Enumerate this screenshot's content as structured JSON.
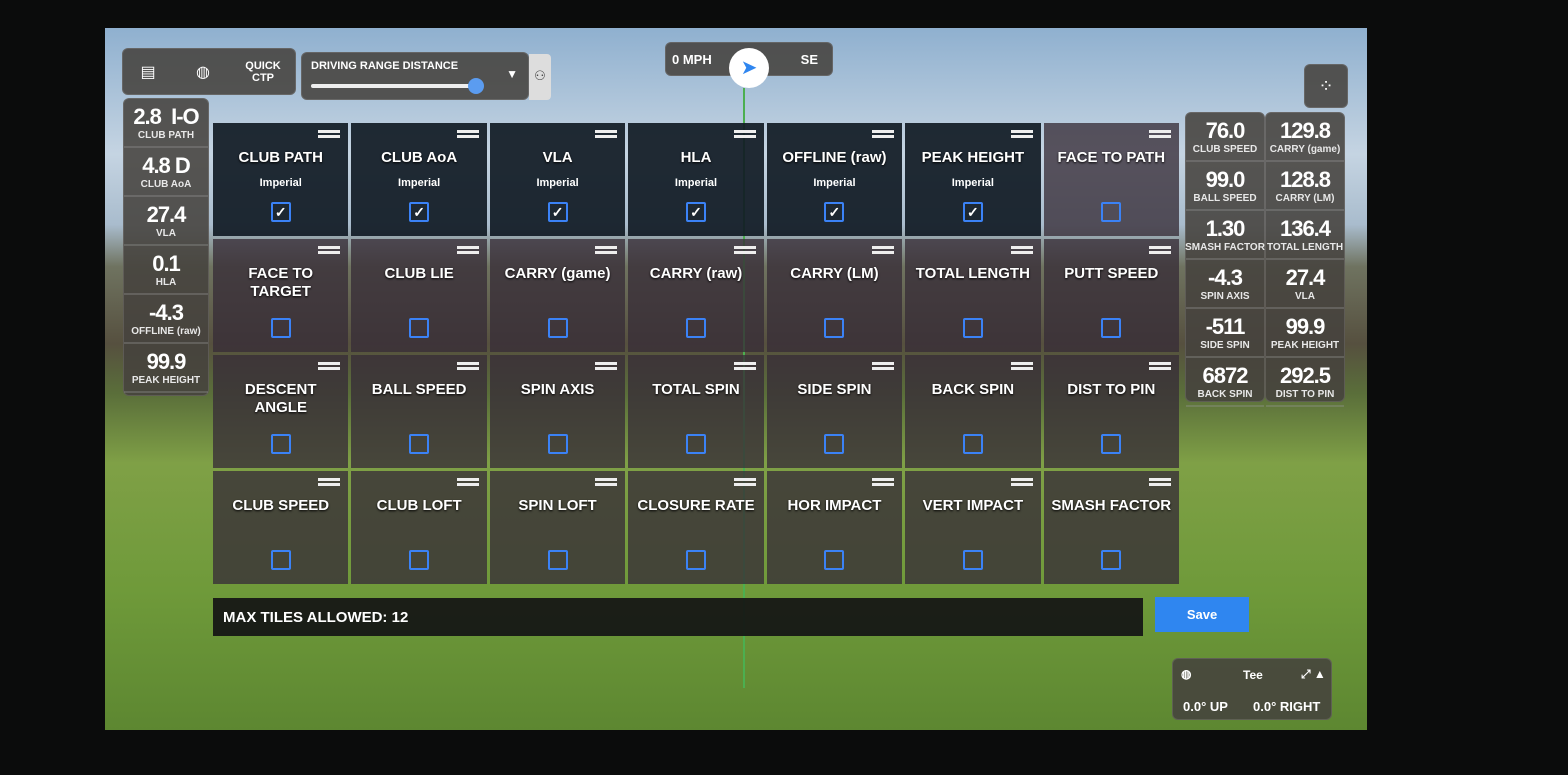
{
  "toolbar": {
    "clipboard_icon": "clipboard-icon",
    "ball_icon": "golf-ball-icon",
    "quick_ctp": "QUICK CTP",
    "range_label": "DRIVING RANGE DISTANCE",
    "range_value": 0.95,
    "players_icon": "users-icon"
  },
  "wind": {
    "speed": "0 MPH",
    "direction": "SE"
  },
  "left_stats": [
    {
      "v": "2.8  I-O",
      "l": "CLUB PATH"
    },
    {
      "v": "4.8 D",
      "l": "CLUB AoA"
    },
    {
      "v": "27.4",
      "l": "VLA"
    },
    {
      "v": "0.1",
      "l": "HLA"
    },
    {
      "v": "-4.3",
      "l": "OFFLINE (raw)"
    },
    {
      "v": "99.9",
      "l": "PEAK HEIGHT"
    }
  ],
  "right_stats_a": [
    {
      "v": "76.0",
      "l": "CLUB SPEED"
    },
    {
      "v": "99.0",
      "l": "BALL SPEED"
    },
    {
      "v": "1.30",
      "l": "SMASH FACTOR"
    },
    {
      "v": "-4.3",
      "l": "SPIN AXIS"
    },
    {
      "v": "-511",
      "l": "SIDE SPIN"
    },
    {
      "v": "6872",
      "l": "BACK SPIN"
    }
  ],
  "right_stats_b": [
    {
      "v": "129.8",
      "l": "CARRY (game)"
    },
    {
      "v": "128.8",
      "l": "CARRY (LM)"
    },
    {
      "v": "136.4",
      "l": "TOTAL LENGTH"
    },
    {
      "v": "27.4",
      "l": "VLA"
    },
    {
      "v": "99.9",
      "l": "PEAK HEIGHT"
    },
    {
      "v": "292.5",
      "l": "DIST TO PIN"
    }
  ],
  "tiles": [
    {
      "t": "CLUB PATH",
      "u": "Imperial",
      "on": true
    },
    {
      "t": "CLUB AoA",
      "u": "Imperial",
      "on": true
    },
    {
      "t": "VLA",
      "u": "Imperial",
      "on": true
    },
    {
      "t": "HLA",
      "u": "Imperial",
      "on": true
    },
    {
      "t": "OFFLINE (raw)",
      "u": "Imperial",
      "on": true
    },
    {
      "t": "PEAK HEIGHT",
      "u": "Imperial",
      "on": true
    },
    {
      "t": "FACE TO PATH",
      "on": false
    },
    {
      "t": "FACE TO TARGET",
      "on": false
    },
    {
      "t": "CLUB LIE",
      "on": false
    },
    {
      "t": "CARRY (game)",
      "on": false
    },
    {
      "t": "CARRY (raw)",
      "on": false
    },
    {
      "t": "CARRY (LM)",
      "on": false
    },
    {
      "t": "TOTAL LENGTH",
      "on": false
    },
    {
      "t": "PUTT SPEED",
      "on": false
    },
    {
      "t": "DESCENT ANGLE",
      "on": false
    },
    {
      "t": "BALL SPEED",
      "on": false
    },
    {
      "t": "SPIN AXIS",
      "on": false
    },
    {
      "t": "TOTAL SPIN",
      "on": false
    },
    {
      "t": "SIDE SPIN",
      "on": false
    },
    {
      "t": "BACK SPIN",
      "on": false
    },
    {
      "t": "DIST TO PIN",
      "on": false
    },
    {
      "t": "CLUB SPEED",
      "on": false
    },
    {
      "t": "CLUB LOFT",
      "on": false
    },
    {
      "t": "SPIN LOFT",
      "on": false
    },
    {
      "t": "CLOSURE RATE",
      "on": false
    },
    {
      "t": "HOR IMPACT",
      "on": false
    },
    {
      "t": "VERT IMPACT",
      "on": false
    },
    {
      "t": "SMASH FACTOR",
      "on": false
    }
  ],
  "max_tiles": "MAX TILES ALLOWED: 12",
  "save": "Save",
  "tee": {
    "label": "Tee",
    "up": "0.0° UP",
    "right": "0.0° RIGHT"
  },
  "accent": "#2f86f0"
}
